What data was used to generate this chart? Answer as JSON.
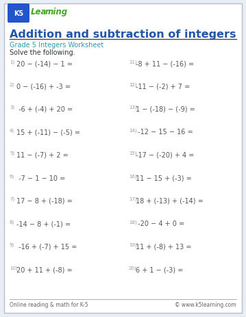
{
  "bg_color": "#e8eef5",
  "border_color": "#cccccc",
  "inner_bg": "#ffffff",
  "title": "Addition and subtraction of integers",
  "title_color": "#2255aa",
  "subtitle": "Grade 5 Integers Worksheet",
  "subtitle_color": "#3399aa",
  "instruction": "Solve the following.",
  "instruction_color": "#333333",
  "footer_left": "Online reading & math for K-5",
  "footer_right": "© www.k5learning.com",
  "footer_color": "#666666",
  "problems_left": [
    {
      "num": "1)",
      "expr": "20 − (-14) − 1 ="
    },
    {
      "num": "2)",
      "expr": "0 − (-16) + -3 ="
    },
    {
      "num": "3)",
      "expr": " -6 + (-4) + 20 ="
    },
    {
      "num": "4)",
      "expr": "15 + (-11) − (-5) ="
    },
    {
      "num": "5)",
      "expr": "11 − (-7) + 2 ="
    },
    {
      "num": "6)",
      "expr": " -7 − 1 − 10 ="
    },
    {
      "num": "7)",
      "expr": "17 − 8 + (-18) ="
    },
    {
      "num": "8)",
      "expr": "-14 − 8 + (-1) ="
    },
    {
      "num": "9)",
      "expr": " -16 + (-7) + 15 ="
    },
    {
      "num": "10)",
      "expr": "20 + 11 + (-8) ="
    }
  ],
  "problems_right": [
    {
      "num": "11)",
      "expr": "-8 + 11 − (-16) ="
    },
    {
      "num": "12)",
      "expr": "-11 − (-2) + 7 ="
    },
    {
      "num": "13)",
      "expr": "1 − (-18) − (-9) ="
    },
    {
      "num": "14)",
      "expr": " -12 − 15 − 16 ="
    },
    {
      "num": "15)",
      "expr": "-17 − (-20) + 4 ="
    },
    {
      "num": "16)",
      "expr": "11 − 15 + (-3) ="
    },
    {
      "num": "17)",
      "expr": "18 + (-13) + (-14) ="
    },
    {
      "num": "18)",
      "expr": " -20 − 4 + 0 ="
    },
    {
      "num": "19)",
      "expr": "11 + (-8) + 13 ="
    },
    {
      "num": "20)",
      "expr": "6 + 1 − (-3) ="
    }
  ],
  "num_color": "#999999",
  "expr_color": "#555555",
  "title_fontsize": 11.5,
  "subtitle_fontsize": 7,
  "instruction_fontsize": 7,
  "problem_fontsize": 7,
  "footer_fontsize": 5.5
}
